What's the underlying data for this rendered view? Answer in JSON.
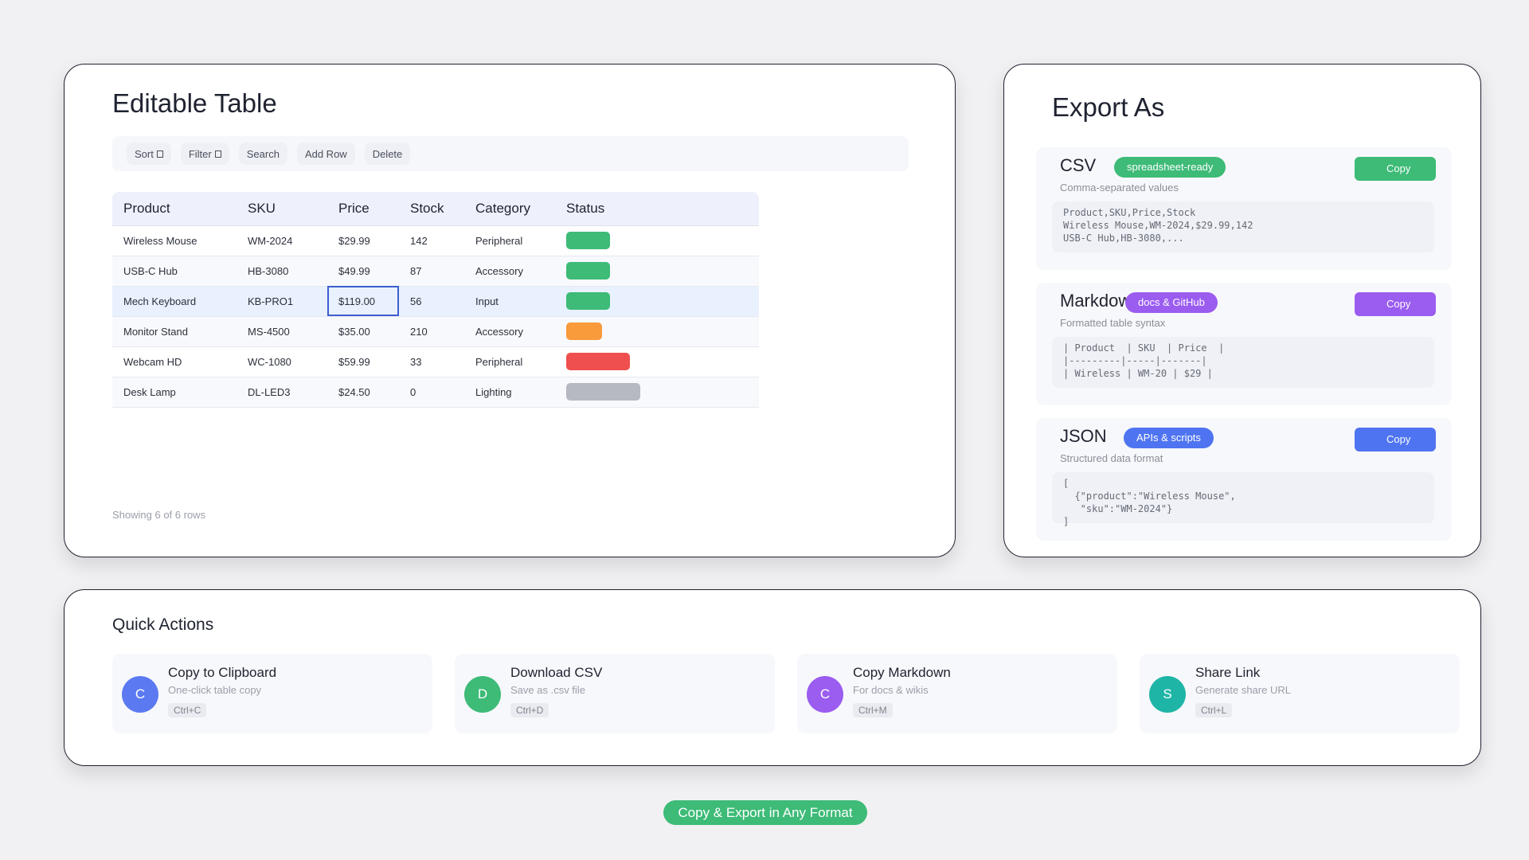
{
  "table_card": {
    "title": "Editable Table",
    "toolbar": [
      {
        "label": "Sort",
        "caret": true
      },
      {
        "label": "Filter",
        "caret": true
      },
      {
        "label": "Search",
        "caret": false
      },
      {
        "label": "Add Row",
        "caret": false
      },
      {
        "label": "Delete",
        "caret": false
      }
    ],
    "columns": [
      "Product",
      "SKU",
      "Price",
      "Stock",
      "Category",
      "Status"
    ],
    "rows": [
      {
        "product": "Wireless Mouse",
        "sku": "WM-2024",
        "price": "$29.99",
        "stock": "142",
        "category": "Peripheral",
        "status_color": "#3dbb77",
        "status_level": 0.55
      },
      {
        "product": "USB-C Hub",
        "sku": "HB-3080",
        "price": "$49.99",
        "stock": "87",
        "category": "Accessory",
        "status_color": "#3dbb77",
        "status_level": 0.55
      },
      {
        "product": "Mech Keyboard",
        "sku": "KB-PRO1",
        "price": "$119.00",
        "stock": "56",
        "category": "Input",
        "status_color": "#3dbb77",
        "status_level": 0.55,
        "selected": true
      },
      {
        "product": "Monitor Stand",
        "sku": "MS-4500",
        "price": "$35.00",
        "stock": "210",
        "category": "Accessory",
        "status_color": "#f99a3b",
        "status_level": 0.45
      },
      {
        "product": "Webcam HD",
        "sku": "WC-1080",
        "price": "$59.99",
        "stock": "33",
        "category": "Peripheral",
        "status_color": "#ef4f4f",
        "status_level": 0.8
      },
      {
        "product": "Desk Lamp",
        "sku": "DL-LED3",
        "price": "$24.50",
        "stock": "0",
        "category": "Lighting",
        "status_color": "#b7b9c1",
        "status_level": 0.93
      }
    ],
    "footer": "Showing 6 of 6 rows"
  },
  "export_card": {
    "title": "Export As",
    "formats": [
      {
        "name": "CSV",
        "badge": "spreadsheet-ready",
        "color": "#3dbb77",
        "copy_label": "Copy",
        "description": "Comma-separated values",
        "code": "Product,SKU,Price,Stock\nWireless Mouse,WM-2024,$29.99,142\nUSB-C Hub,HB-3080,..."
      },
      {
        "name": "Markdown",
        "badge": "docs & GitHub",
        "color": "#9b5cf0",
        "copy_label": "Copy",
        "description": "Formatted table syntax",
        "code": "| Product  | SKU  | Price  |\n|---------|-----|-------|\n| Wireless | WM-20 | $29 |"
      },
      {
        "name": "JSON",
        "badge": "APIs & scripts",
        "color": "#4f74f1",
        "copy_label": "Copy",
        "description": "Structured data format",
        "code": "[\n  {\"product\":\"Wireless Mouse\",\n   \"sku\":\"WM-2024\"}\n]"
      }
    ]
  },
  "quick_actions": {
    "title": "Quick Actions",
    "items": [
      {
        "avatar": "C",
        "color": "#5b7af2",
        "title": "Copy to Clipboard",
        "subtitle": "One-click table copy",
        "shortcut": "Ctrl+C"
      },
      {
        "avatar": "D",
        "color": "#3dbb77",
        "title": "Download CSV",
        "subtitle": "Save as .csv file",
        "shortcut": "Ctrl+D"
      },
      {
        "avatar": "C",
        "color": "#9b5cf0",
        "title": "Copy Markdown",
        "subtitle": "For docs & wikis",
        "shortcut": "Ctrl+M"
      },
      {
        "avatar": "S",
        "color": "#1fb5a6",
        "title": "Share Link",
        "subtitle": "Generate share URL",
        "shortcut": "Ctrl+L"
      }
    ]
  },
  "caption": "Copy & Export in Any Format"
}
